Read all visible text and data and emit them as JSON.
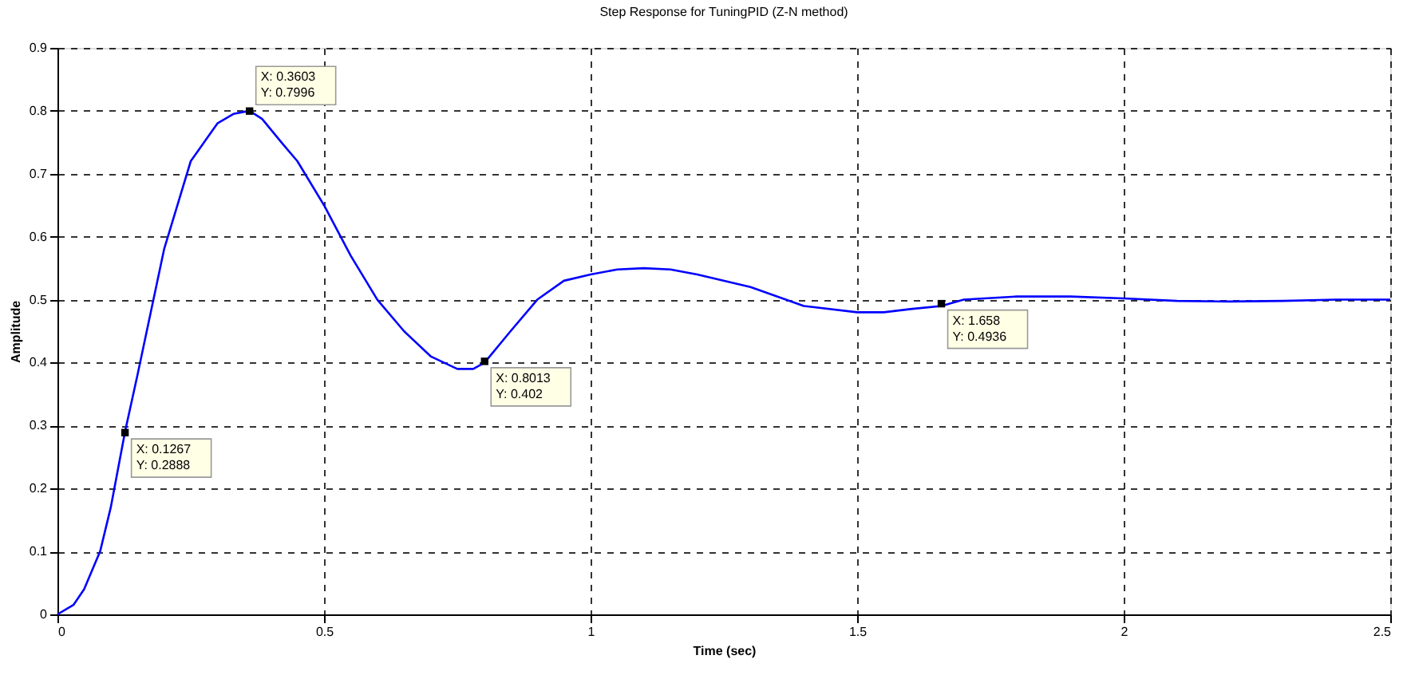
{
  "chart_data": {
    "type": "line",
    "title": "Step Response for TuningPID (Z-N method)",
    "xlabel": "Time (sec)",
    "ylabel": "Amplitude",
    "xlim": [
      0,
      2.5
    ],
    "xticks": [
      0,
      0.5,
      1,
      1.5,
      2,
      2.5
    ],
    "ylim": [
      0,
      0.9
    ],
    "yticks": [
      0,
      0.1,
      0.2,
      0.3,
      0.4,
      0.5,
      0.6,
      0.7,
      0.8,
      0.9
    ],
    "grid": true,
    "marker": "none",
    "line_style": "solid",
    "series": [
      {
        "color": "#0000ff",
        "x": [
          0,
          0.03,
          0.05,
          0.08,
          0.1,
          0.1267,
          0.15,
          0.2,
          0.25,
          0.3,
          0.33,
          0.3603,
          0.384,
          0.42,
          0.45,
          0.5,
          0.55,
          0.6,
          0.65,
          0.7,
          0.75,
          0.78,
          0.8013,
          0.85,
          0.9,
          0.95,
          1.0,
          1.05,
          1.1,
          1.15,
          1.2,
          1.3,
          1.4,
          1.5,
          1.55,
          1.6,
          1.658,
          1.7,
          1.8,
          1.9,
          2.0,
          2.1,
          2.2,
          2.3,
          2.4,
          2.5
        ],
        "values": [
          0,
          0.015,
          0.04,
          0.1,
          0.17,
          0.29,
          0.38,
          0.58,
          0.72,
          0.78,
          0.795,
          0.8,
          0.787,
          0.75,
          0.72,
          0.65,
          0.57,
          0.5,
          0.45,
          0.41,
          0.39,
          0.39,
          0.4,
          0.45,
          0.5,
          0.53,
          0.54,
          0.548,
          0.55,
          0.548,
          0.54,
          0.52,
          0.49,
          0.48,
          0.48,
          0.485,
          0.49,
          0.5,
          0.505,
          0.505,
          0.502,
          0.498,
          0.497,
          0.498,
          0.5,
          0.5
        ]
      }
    ],
    "annotations": [
      {
        "text": "X: 0.1267\nY: 0.2888",
        "x": 0.1267,
        "y": 0.2888
      },
      {
        "text": "X: 0.3603\nY: 0.7996",
        "x": 0.3603,
        "y": 0.7996
      },
      {
        "text": "X: 0.8013\nY: 0.402",
        "x": 0.8013,
        "y": 0.402
      },
      {
        "text": "X: 1.658\nY: 0.4936",
        "x": 1.658,
        "y": 0.4936
      }
    ]
  }
}
